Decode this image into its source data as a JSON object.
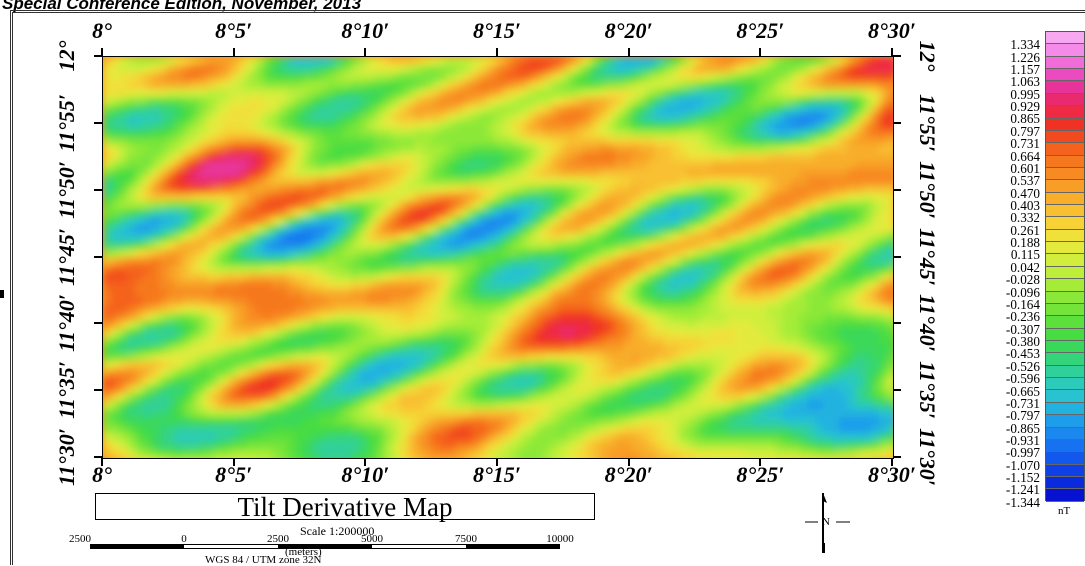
{
  "header": "Special Conference Edition, November, 2013",
  "map": {
    "top_labels": [
      "8°",
      "8°5′",
      "8°10′",
      "8°15′",
      "8°20′",
      "8°25′",
      "8°30′"
    ],
    "bottom_labels": [
      "8°",
      "8°5′",
      "8°10′",
      "8°15′",
      "8°20′",
      "8°25′",
      "8°30′"
    ],
    "lat_labels": [
      "12°",
      "11°55′",
      "11°50′",
      "11°45′",
      "11°40′",
      "11°35′",
      "11°30′"
    ],
    "title": "Tilt Derivative Map",
    "scale_text": "Scale 1:200000",
    "scale_ticks": [
      "2500",
      "0",
      "2500",
      "5000",
      "7500",
      "10000"
    ],
    "scale_units": "(meters)",
    "projection": "WGS 84 / UTM zone 32N",
    "north_letter": "N"
  },
  "colorbar": {
    "unit": "nT",
    "values": [
      "1.334",
      "1.226",
      "1.157",
      "1.063",
      "0.995",
      "0.929",
      "0.865",
      "0.797",
      "0.731",
      "0.664",
      "0.601",
      "0.537",
      "0.470",
      "0.403",
      "0.332",
      "0.261",
      "0.188",
      "0.115",
      "0.042",
      "-0.028",
      "-0.096",
      "-0.164",
      "-0.236",
      "-0.307",
      "-0.380",
      "-0.453",
      "-0.526",
      "-0.596",
      "-0.665",
      "-0.731",
      "-0.797",
      "-0.865",
      "-0.931",
      "-0.997",
      "-1.070",
      "-1.152",
      "-1.241",
      "-1.344"
    ],
    "colors": [
      "#f7a8f0",
      "#f58be8",
      "#f06cd8",
      "#ec4bc0",
      "#e8349a",
      "#ea2a6e",
      "#ee2a44",
      "#f03224",
      "#f24a1e",
      "#f4621e",
      "#f6781e",
      "#f78a22",
      "#f89e26",
      "#f8ae2a",
      "#f8c030",
      "#f6d236",
      "#f0e03a",
      "#e4ea3c",
      "#d2ee3c",
      "#bcee3a",
      "#a4ec38",
      "#8ce838",
      "#74e43a",
      "#5ce03c",
      "#46dc42",
      "#3ad85a",
      "#34d47a",
      "#30d09a",
      "#2ccab8",
      "#28c2d0",
      "#22b2e0",
      "#1e9eea",
      "#1a88ee",
      "#1672f0",
      "#1258ec",
      "#0e40e6",
      "#0a2ade",
      "#0612d0"
    ]
  }
}
